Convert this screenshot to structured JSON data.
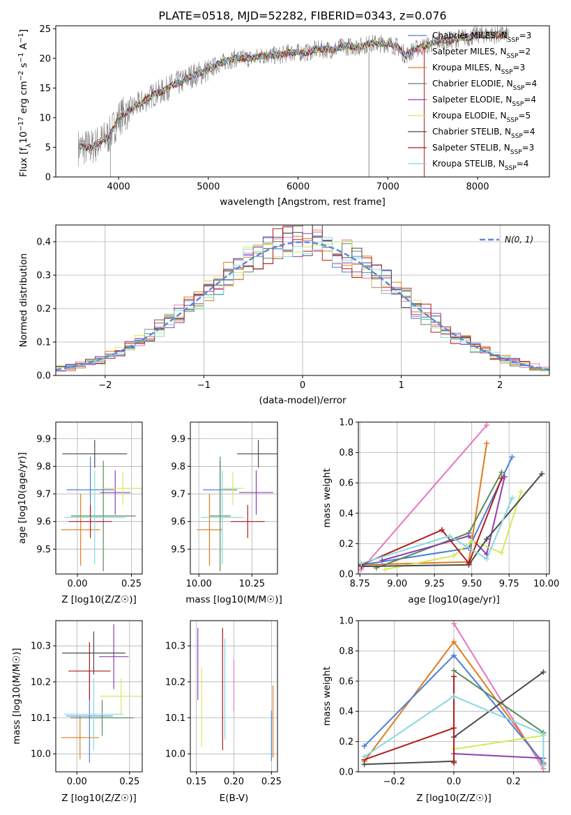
{
  "colors": {
    "chabrier_miles": "#4a7fd8",
    "salpeter_miles": "#e377c2",
    "kroupa_miles": "#e07b1e",
    "chabrier_elodie": "#5a8a5a",
    "salpeter_elodie": "#8e3fb0",
    "kroupa_elodie": "#d4ea5a",
    "chabrier_stelib": "#4a4a4a",
    "salpeter_stelib": "#b01c1c",
    "kroupa_stelib": "#87d8e0",
    "gauss": "#5b8ad8",
    "spectrum": "#808080"
  },
  "chart_data": [
    {
      "id": "spectrum",
      "type": "line",
      "title": "PLATE=0518, MJD=52282, FIBERID=0343, z=0.076",
      "xlabel": "wavelength [Angstrom, rest frame]",
      "ylabel": "Flux [f",
      "xlim": [
        3300,
        8800
      ],
      "ylim": [
        0,
        25.5
      ],
      "xticks": [
        4000,
        5000,
        6000,
        7000,
        8000
      ],
      "yticks": [
        0,
        5,
        10,
        15,
        20,
        25
      ],
      "legend_position": "top-right",
      "legend": [
        {
          "label": "Chabrier MILES, N",
          "n": "3",
          "color_key": "chabrier_miles"
        },
        {
          "label": "Salpeter MILES, N",
          "n": "2",
          "color_key": "salpeter_miles"
        },
        {
          "label": "Kroupa MILES, N",
          "n": "3",
          "color_key": "kroupa_miles"
        },
        {
          "label": "Chabrier ELODIE, N",
          "n": "4",
          "color_key": "chabrier_elodie"
        },
        {
          "label": "Salpeter ELODIE, N",
          "n": "4",
          "color_key": "salpeter_elodie"
        },
        {
          "label": "Kroupa ELODIE, N",
          "n": "5",
          "color_key": "kroupa_elodie"
        },
        {
          "label": "Chabrier STELIB, N",
          "n": "4",
          "color_key": "chabrier_stelib"
        },
        {
          "label": "Salpeter STELIB, N",
          "n": "3",
          "color_key": "salpeter_stelib"
        },
        {
          "label": "Kroupa STELIB, N",
          "n": "4",
          "color_key": "kroupa_stelib"
        }
      ],
      "continuum": [
        [
          3550,
          5
        ],
        [
          3700,
          5
        ],
        [
          3800,
          6
        ],
        [
          3900,
          7
        ],
        [
          4000,
          10
        ],
        [
          4100,
          11
        ],
        [
          4200,
          12
        ],
        [
          4300,
          13
        ],
        [
          4400,
          14
        ],
        [
          4500,
          14.5
        ],
        [
          4600,
          15.5
        ],
        [
          4700,
          16
        ],
        [
          4800,
          17
        ],
        [
          4900,
          17.5
        ],
        [
          5000,
          18
        ],
        [
          5100,
          19
        ],
        [
          5200,
          19.5
        ],
        [
          5300,
          20
        ],
        [
          5400,
          20
        ],
        [
          5500,
          20
        ],
        [
          5600,
          20.5
        ],
        [
          5700,
          20.5
        ],
        [
          5800,
          20.5
        ],
        [
          5900,
          21
        ],
        [
          6000,
          21
        ],
        [
          6100,
          21
        ],
        [
          6200,
          21.5
        ],
        [
          6300,
          21.5
        ],
        [
          6400,
          21.5
        ],
        [
          6500,
          22
        ],
        [
          6600,
          22
        ],
        [
          6700,
          22
        ],
        [
          6800,
          22.5
        ],
        [
          6900,
          22.5
        ],
        [
          7000,
          22.5
        ],
        [
          7100,
          22
        ],
        [
          7200,
          20.5
        ],
        [
          7300,
          21.5
        ],
        [
          7400,
          22
        ],
        [
          7500,
          22.5
        ],
        [
          7600,
          23
        ],
        [
          7700,
          23
        ],
        [
          7800,
          23.5
        ],
        [
          7900,
          23.5
        ],
        [
          8000,
          24
        ],
        [
          8100,
          24
        ],
        [
          8200,
          24
        ],
        [
          8300,
          24
        ]
      ]
    },
    {
      "id": "residuals",
      "type": "line",
      "xlabel": "(data-model)/error",
      "ylabel": "Normed distribution",
      "xlim": [
        -2.5,
        2.5
      ],
      "ylim": [
        0,
        0.45
      ],
      "xticks": [
        -2,
        -1,
        0,
        1,
        2
      ],
      "yticks": [
        0.0,
        0.1,
        0.2,
        0.3,
        0.4
      ],
      "legend_position": "top-right",
      "gauss_label": "N(0, 1)"
    },
    {
      "id": "age_vs_z",
      "type": "scatter",
      "xlabel": "Z [log10(Z/Z☉)]",
      "ylabel": "age  [log10(age/yr)]",
      "xlim": [
        -0.1,
        0.3
      ],
      "ylim": [
        9.41,
        9.96
      ],
      "xticks": [
        0.0,
        0.25
      ],
      "yticks": [
        9.5,
        9.6,
        9.7,
        9.8,
        9.9
      ],
      "points": [
        {
          "key": "chabrier_miles",
          "x": 0.06,
          "xerr": 0.11,
          "y": 9.715,
          "yerr": 0.12
        },
        {
          "key": "kroupa_miles",
          "x": 0.015,
          "xerr": 0.09,
          "y": 9.57,
          "yerr": 0.13
        },
        {
          "key": "chabrier_elodie",
          "x": 0.12,
          "xerr": 0.15,
          "y": 9.62,
          "yerr": 0.2
        },
        {
          "key": "salpeter_elodie",
          "x": 0.175,
          "xerr": 0.07,
          "y": 9.705,
          "yerr": 0.08
        },
        {
          "key": "kroupa_elodie",
          "x": 0.21,
          "xerr": 0.1,
          "y": 9.72,
          "yerr": 0.06
        },
        {
          "key": "chabrier_stelib",
          "x": 0.08,
          "xerr": 0.15,
          "y": 9.845,
          "yerr": 0.05
        },
        {
          "key": "salpeter_stelib",
          "x": 0.06,
          "xerr": 0.1,
          "y": 9.6,
          "yerr": 0.06
        },
        {
          "key": "kroupa_stelib",
          "x": 0.08,
          "xerr": 0.14,
          "y": 9.615,
          "yerr": 0.17
        }
      ]
    },
    {
      "id": "age_vs_mass",
      "type": "scatter",
      "xlabel": "mass [log10(M/M☉)]",
      "xlim": [
        9.96,
        10.37
      ],
      "ylim": [
        9.41,
        9.96
      ],
      "xticks": [
        10.0,
        10.25
      ],
      "yticks": [
        9.5,
        9.6,
        9.7,
        9.8,
        9.9
      ],
      "points": [
        {
          "key": "chabrier_miles",
          "x": 10.1,
          "xerr": 0.08,
          "y": 9.715,
          "yerr": 0.12
        },
        {
          "key": "kroupa_miles",
          "x": 10.05,
          "xerr": 0.06,
          "y": 9.57,
          "yerr": 0.13
        },
        {
          "key": "chabrier_elodie",
          "x": 10.1,
          "xerr": 0.05,
          "y": 9.62,
          "yerr": 0.2
        },
        {
          "key": "salpeter_elodie",
          "x": 10.27,
          "xerr": 0.08,
          "y": 9.705,
          "yerr": 0.08
        },
        {
          "key": "kroupa_elodie",
          "x": 10.16,
          "xerr": 0.05,
          "y": 9.72,
          "yerr": 0.06
        },
        {
          "key": "chabrier_stelib",
          "x": 10.28,
          "xerr": 0.1,
          "y": 9.845,
          "yerr": 0.05
        },
        {
          "key": "salpeter_stelib",
          "x": 10.23,
          "xerr": 0.08,
          "y": 9.6,
          "yerr": 0.06
        },
        {
          "key": "kroupa_stelib",
          "x": 10.11,
          "xerr": 0.1,
          "y": 9.615,
          "yerr": 0.17
        }
      ]
    },
    {
      "id": "mass_vs_z",
      "type": "scatter",
      "xlabel": "Z [log10(Z/Z☉)]",
      "ylabel": "mass [log10(M/M☉)]",
      "xlim": [
        -0.1,
        0.31
      ],
      "ylim": [
        9.95,
        10.37
      ],
      "xticks": [
        0.0,
        0.25
      ],
      "yticks": [
        10.0,
        10.1,
        10.2,
        10.3
      ],
      "points": [
        {
          "key": "chabrier_miles",
          "x": 0.06,
          "xerr": 0.11,
          "y": 10.105,
          "yerr": 0.13
        },
        {
          "key": "kroupa_miles",
          "x": 0.015,
          "xerr": 0.09,
          "y": 10.045,
          "yerr": 0.06
        },
        {
          "key": "chabrier_elodie",
          "x": 0.12,
          "xerr": 0.15,
          "y": 10.1,
          "yerr": 0.05
        },
        {
          "key": "salpeter_elodie",
          "x": 0.175,
          "xerr": 0.07,
          "y": 10.27,
          "yerr": 0.09
        },
        {
          "key": "kroupa_elodie",
          "x": 0.21,
          "xerr": 0.1,
          "y": 10.16,
          "yerr": 0.05
        },
        {
          "key": "chabrier_stelib",
          "x": 0.08,
          "xerr": 0.15,
          "y": 10.28,
          "yerr": 0.06
        },
        {
          "key": "salpeter_stelib",
          "x": 0.06,
          "xerr": 0.1,
          "y": 10.23,
          "yerr": 0.08
        },
        {
          "key": "kroupa_stelib",
          "x": 0.08,
          "xerr": 0.14,
          "y": 10.11,
          "yerr": 0.1
        }
      ]
    },
    {
      "id": "mass_vs_ebv",
      "type": "scatter",
      "xlabel": "E(B-V)",
      "xlim": [
        0.142,
        0.258
      ],
      "ylim": [
        9.95,
        10.37
      ],
      "xticks": [
        0.15,
        0.2,
        0.25
      ],
      "yticks": [
        10.0,
        10.1,
        10.2,
        10.3
      ],
      "points": [
        {
          "key": "salpeter_elodie",
          "x": 0.152,
          "y": 10.25,
          "yerr": 0.1
        },
        {
          "key": "kroupa_elodie",
          "x": 0.157,
          "y": 10.13,
          "yerr": 0.11
        },
        {
          "key": "salpeter_stelib",
          "x": 0.185,
          "y": 10.18,
          "yerr": 0.17
        },
        {
          "key": "kroupa_stelib",
          "x": 0.188,
          "y": 10.18,
          "yerr": 0.14
        },
        {
          "key": "salpeter_miles",
          "x": 0.2,
          "y": 10.19,
          "yerr": 0.07
        },
        {
          "key": "kroupa_miles",
          "x": 0.252,
          "y": 10.09,
          "yerr": 0.1
        },
        {
          "key": "chabrier_miles",
          "x": 0.25,
          "y": 10.05,
          "yerr": 0.07
        }
      ]
    },
    {
      "id": "mw_vs_age",
      "type": "line",
      "xlabel": "age  [log10(age/yr)]",
      "ylabel": "mass weight",
      "xlim": [
        8.74,
        10.02
      ],
      "ylim": [
        0,
        1
      ],
      "xticks": [
        8.75,
        9.0,
        9.25,
        9.5,
        9.75,
        10.0
      ],
      "yticks": [
        0.0,
        0.2,
        0.4,
        0.6,
        0.8,
        1.0
      ],
      "series": [
        {
          "key": "salpeter_miles",
          "x": [
            8.76,
            9.6
          ],
          "y": [
            0.03,
            0.98
          ]
        },
        {
          "key": "kroupa_miles",
          "x": [
            8.76,
            9.48,
            9.6
          ],
          "y": [
            0.06,
            0.08,
            0.86
          ]
        },
        {
          "key": "chabrier_miles",
          "x": [
            8.76,
            9.48,
            9.77
          ],
          "y": [
            0.06,
            0.17,
            0.77
          ]
        },
        {
          "key": "chabrier_elodie",
          "x": [
            8.86,
            9.48,
            9.7
          ],
          "y": [
            0.04,
            0.27,
            0.67
          ]
        },
        {
          "key": "salpeter_elodie",
          "x": [
            8.9,
            9.48,
            9.6,
            9.72
          ],
          "y": [
            0.09,
            0.25,
            0.13,
            0.64
          ]
        },
        {
          "key": "kroupa_elodie",
          "x": [
            8.92,
            9.38,
            9.5,
            9.7,
            9.83
          ],
          "y": [
            0.03,
            0.12,
            0.22,
            0.14,
            0.54
          ]
        },
        {
          "key": "chabrier_stelib",
          "x": [
            8.76,
            9.48,
            9.6,
            9.97
          ],
          "y": [
            0.05,
            0.06,
            0.23,
            0.66
          ]
        },
        {
          "key": "salpeter_stelib",
          "x": [
            8.76,
            9.3,
            9.48,
            9.7
          ],
          "y": [
            0.06,
            0.29,
            0.07,
            0.63
          ]
        },
        {
          "key": "kroupa_stelib",
          "x": [
            8.76,
            9.35,
            9.6,
            9.77
          ],
          "y": [
            0.07,
            0.25,
            0.1,
            0.5
          ]
        }
      ]
    },
    {
      "id": "mw_vs_z",
      "type": "line",
      "xlabel": "Z [log10(Z/Z☉)]",
      "ylabel": "mass weight",
      "xlim": [
        -0.32,
        0.32
      ],
      "ylim": [
        0,
        1
      ],
      "xticks": [
        -0.2,
        0.0,
        0.2
      ],
      "yticks": [
        0.0,
        0.2,
        0.4,
        0.6,
        0.8,
        1.0
      ],
      "series": [
        {
          "key": "salpeter_miles",
          "x": [
            0.0,
            0.3
          ],
          "y": [
            0.98,
            0.02
          ]
        },
        {
          "key": "kroupa_miles",
          "x": [
            -0.3,
            0.0,
            0.3
          ],
          "y": [
            0.07,
            0.86,
            0.05
          ]
        },
        {
          "key": "chabrier_miles",
          "x": [
            -0.3,
            0.0,
            0.3
          ],
          "y": [
            0.17,
            0.77,
            0.06
          ]
        },
        {
          "key": "chabrier_elodie",
          "x": [
            0.0,
            0.3
          ],
          "y": [
            0.67,
            0.26
          ]
        },
        {
          "key": "salpeter_elodie",
          "x": [
            0.0,
            0.3
          ],
          "y": [
            0.12,
            0.09
          ]
        },
        {
          "key": "kroupa_elodie",
          "x": [
            0.0,
            0.3
          ],
          "y": [
            0.15,
            0.24
          ]
        },
        {
          "key": "chabrier_stelib",
          "x": [
            -0.3,
            0.0,
            0.0,
            0.3
          ],
          "y": [
            0.05,
            0.07,
            0.23,
            0.66
          ]
        },
        {
          "key": "salpeter_stelib",
          "x": [
            -0.3,
            0.0,
            0.0,
            0.0
          ],
          "y": [
            0.08,
            0.29,
            0.63,
            0.06
          ]
        },
        {
          "key": "kroupa_stelib",
          "x": [
            -0.3,
            0.0,
            0.3,
            0.3
          ],
          "y": [
            0.1,
            0.5,
            0.25,
            0.04
          ]
        }
      ]
    }
  ]
}
